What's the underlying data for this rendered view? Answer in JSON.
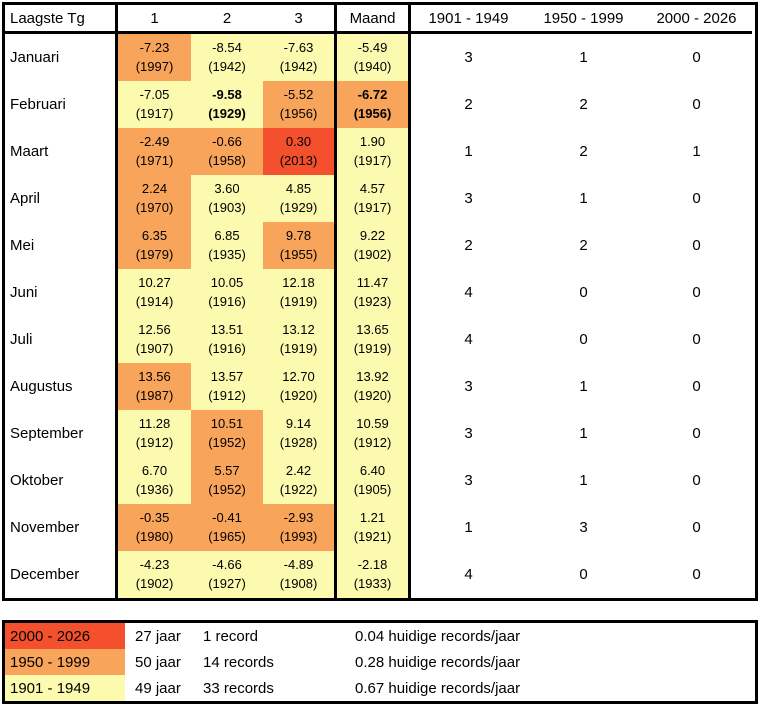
{
  "chart_data": {
    "type": "table",
    "title": "Laagste Tg",
    "description_visible_text_only": "",
    "colors": {
      "1901": "#FBFAAF",
      "1950": "#F8A45A",
      "2000": "#F4502E"
    },
    "header": {
      "corner_label": "Laagste Tg",
      "rank_columns": [
        "1",
        "2",
        "3"
      ],
      "maand_label": "Maand",
      "period_columns": [
        "1901 - 1949",
        "1950 - 1999",
        "2000 - 2026"
      ]
    },
    "months": [
      {
        "name": "Januari",
        "ranks": [
          {
            "value": "-7.23",
            "year": "(1997)",
            "period": "1950",
            "bold": false
          },
          {
            "value": "-8.54",
            "year": "(1942)",
            "period": "1901",
            "bold": false
          },
          {
            "value": "-7.63",
            "year": "(1942)",
            "period": "1901",
            "bold": false
          }
        ],
        "maand": {
          "value": "-5.49",
          "year": "(1940)",
          "period": "1901",
          "bold": false
        },
        "counts": [
          "3",
          "1",
          "0"
        ]
      },
      {
        "name": "Februari",
        "ranks": [
          {
            "value": "-7.05",
            "year": "(1917)",
            "period": "1901",
            "bold": false
          },
          {
            "value": "-9.58",
            "year": "(1929)",
            "period": "1901",
            "bold": true
          },
          {
            "value": "-5.52",
            "year": "(1956)",
            "period": "1950",
            "bold": false
          }
        ],
        "maand": {
          "value": "-6.72",
          "year": "(1956)",
          "period": "1950",
          "bold": true
        },
        "counts": [
          "2",
          "2",
          "0"
        ]
      },
      {
        "name": "Maart",
        "ranks": [
          {
            "value": "-2.49",
            "year": "(1971)",
            "period": "1950",
            "bold": false
          },
          {
            "value": "-0.66",
            "year": "(1958)",
            "period": "1950",
            "bold": false
          },
          {
            "value": "0.30",
            "year": "(2013)",
            "period": "2000",
            "bold": false
          }
        ],
        "maand": {
          "value": "1.90",
          "year": "(1917)",
          "period": "1901",
          "bold": false
        },
        "counts": [
          "1",
          "2",
          "1"
        ]
      },
      {
        "name": "April",
        "ranks": [
          {
            "value": "2.24",
            "year": "(1970)",
            "period": "1950",
            "bold": false
          },
          {
            "value": "3.60",
            "year": "(1903)",
            "period": "1901",
            "bold": false
          },
          {
            "value": "4.85",
            "year": "(1929)",
            "period": "1901",
            "bold": false
          }
        ],
        "maand": {
          "value": "4.57",
          "year": "(1917)",
          "period": "1901",
          "bold": false
        },
        "counts": [
          "3",
          "1",
          "0"
        ]
      },
      {
        "name": "Mei",
        "ranks": [
          {
            "value": "6.35",
            "year": "(1979)",
            "period": "1950",
            "bold": false
          },
          {
            "value": "6.85",
            "year": "(1935)",
            "period": "1901",
            "bold": false
          },
          {
            "value": "9.78",
            "year": "(1955)",
            "period": "1950",
            "bold": false
          }
        ],
        "maand": {
          "value": "9.22",
          "year": "(1902)",
          "period": "1901",
          "bold": false
        },
        "counts": [
          "2",
          "2",
          "0"
        ]
      },
      {
        "name": "Juni",
        "ranks": [
          {
            "value": "10.27",
            "year": "(1914)",
            "period": "1901",
            "bold": false
          },
          {
            "value": "10.05",
            "year": "(1916)",
            "period": "1901",
            "bold": false
          },
          {
            "value": "12.18",
            "year": "(1919)",
            "period": "1901",
            "bold": false
          }
        ],
        "maand": {
          "value": "11.47",
          "year": "(1923)",
          "period": "1901",
          "bold": false
        },
        "counts": [
          "4",
          "0",
          "0"
        ]
      },
      {
        "name": "Juli",
        "ranks": [
          {
            "value": "12.56",
            "year": "(1907)",
            "period": "1901",
            "bold": false
          },
          {
            "value": "13.51",
            "year": "(1916)",
            "period": "1901",
            "bold": false
          },
          {
            "value": "13.12",
            "year": "(1919)",
            "period": "1901",
            "bold": false
          }
        ],
        "maand": {
          "value": "13.65",
          "year": "(1919)",
          "period": "1901",
          "bold": false
        },
        "counts": [
          "4",
          "0",
          "0"
        ]
      },
      {
        "name": "Augustus",
        "ranks": [
          {
            "value": "13.56",
            "year": "(1987)",
            "period": "1950",
            "bold": false
          },
          {
            "value": "13.57",
            "year": "(1912)",
            "period": "1901",
            "bold": false
          },
          {
            "value": "12.70",
            "year": "(1920)",
            "period": "1901",
            "bold": false
          }
        ],
        "maand": {
          "value": "13.92",
          "year": "(1920)",
          "period": "1901",
          "bold": false
        },
        "counts": [
          "3",
          "1",
          "0"
        ]
      },
      {
        "name": "September",
        "ranks": [
          {
            "value": "11.28",
            "year": "(1912)",
            "period": "1901",
            "bold": false
          },
          {
            "value": "10.51",
            "year": "(1952)",
            "period": "1950",
            "bold": false
          },
          {
            "value": "9.14",
            "year": "(1928)",
            "period": "1901",
            "bold": false
          }
        ],
        "maand": {
          "value": "10.59",
          "year": "(1912)",
          "period": "1901",
          "bold": false
        },
        "counts": [
          "3",
          "1",
          "0"
        ]
      },
      {
        "name": "Oktober",
        "ranks": [
          {
            "value": "6.70",
            "year": "(1936)",
            "period": "1901",
            "bold": false
          },
          {
            "value": "5.57",
            "year": "(1952)",
            "period": "1950",
            "bold": false
          },
          {
            "value": "2.42",
            "year": "(1922)",
            "period": "1901",
            "bold": false
          }
        ],
        "maand": {
          "value": "6.40",
          "year": "(1905)",
          "period": "1901",
          "bold": false
        },
        "counts": [
          "3",
          "1",
          "0"
        ]
      },
      {
        "name": "November",
        "ranks": [
          {
            "value": "-0.35",
            "year": "(1980)",
            "period": "1950",
            "bold": false
          },
          {
            "value": "-0.41",
            "year": "(1965)",
            "period": "1950",
            "bold": false
          },
          {
            "value": "-2.93",
            "year": "(1993)",
            "period": "1950",
            "bold": false
          }
        ],
        "maand": {
          "value": "1.21",
          "year": "(1921)",
          "period": "1901",
          "bold": false
        },
        "counts": [
          "1",
          "3",
          "0"
        ]
      },
      {
        "name": "December",
        "ranks": [
          {
            "value": "-4.23",
            "year": "(1902)",
            "period": "1901",
            "bold": false
          },
          {
            "value": "-4.66",
            "year": "(1927)",
            "period": "1901",
            "bold": false
          },
          {
            "value": "-4.89",
            "year": "(1908)",
            "period": "1901",
            "bold": false
          }
        ],
        "maand": {
          "value": "-2.18",
          "year": "(1933)",
          "period": "1901",
          "bold": false
        },
        "counts": [
          "4",
          "0",
          "0"
        ]
      }
    ],
    "legend_rows": [
      {
        "label": "2000 - 2026",
        "period": "2000",
        "jaar": "27 jaar",
        "records": "1 record",
        "rate": "0.04 huidige records/jaar"
      },
      {
        "label": "1950 - 1999",
        "period": "1950",
        "jaar": "50 jaar",
        "records": "14 records",
        "rate": "0.28 huidige records/jaar"
      },
      {
        "label": "1901 - 1949",
        "period": "1901",
        "jaar": "49 jaar",
        "records": "33 records",
        "rate": "0.67 huidige records/jaar"
      }
    ]
  }
}
